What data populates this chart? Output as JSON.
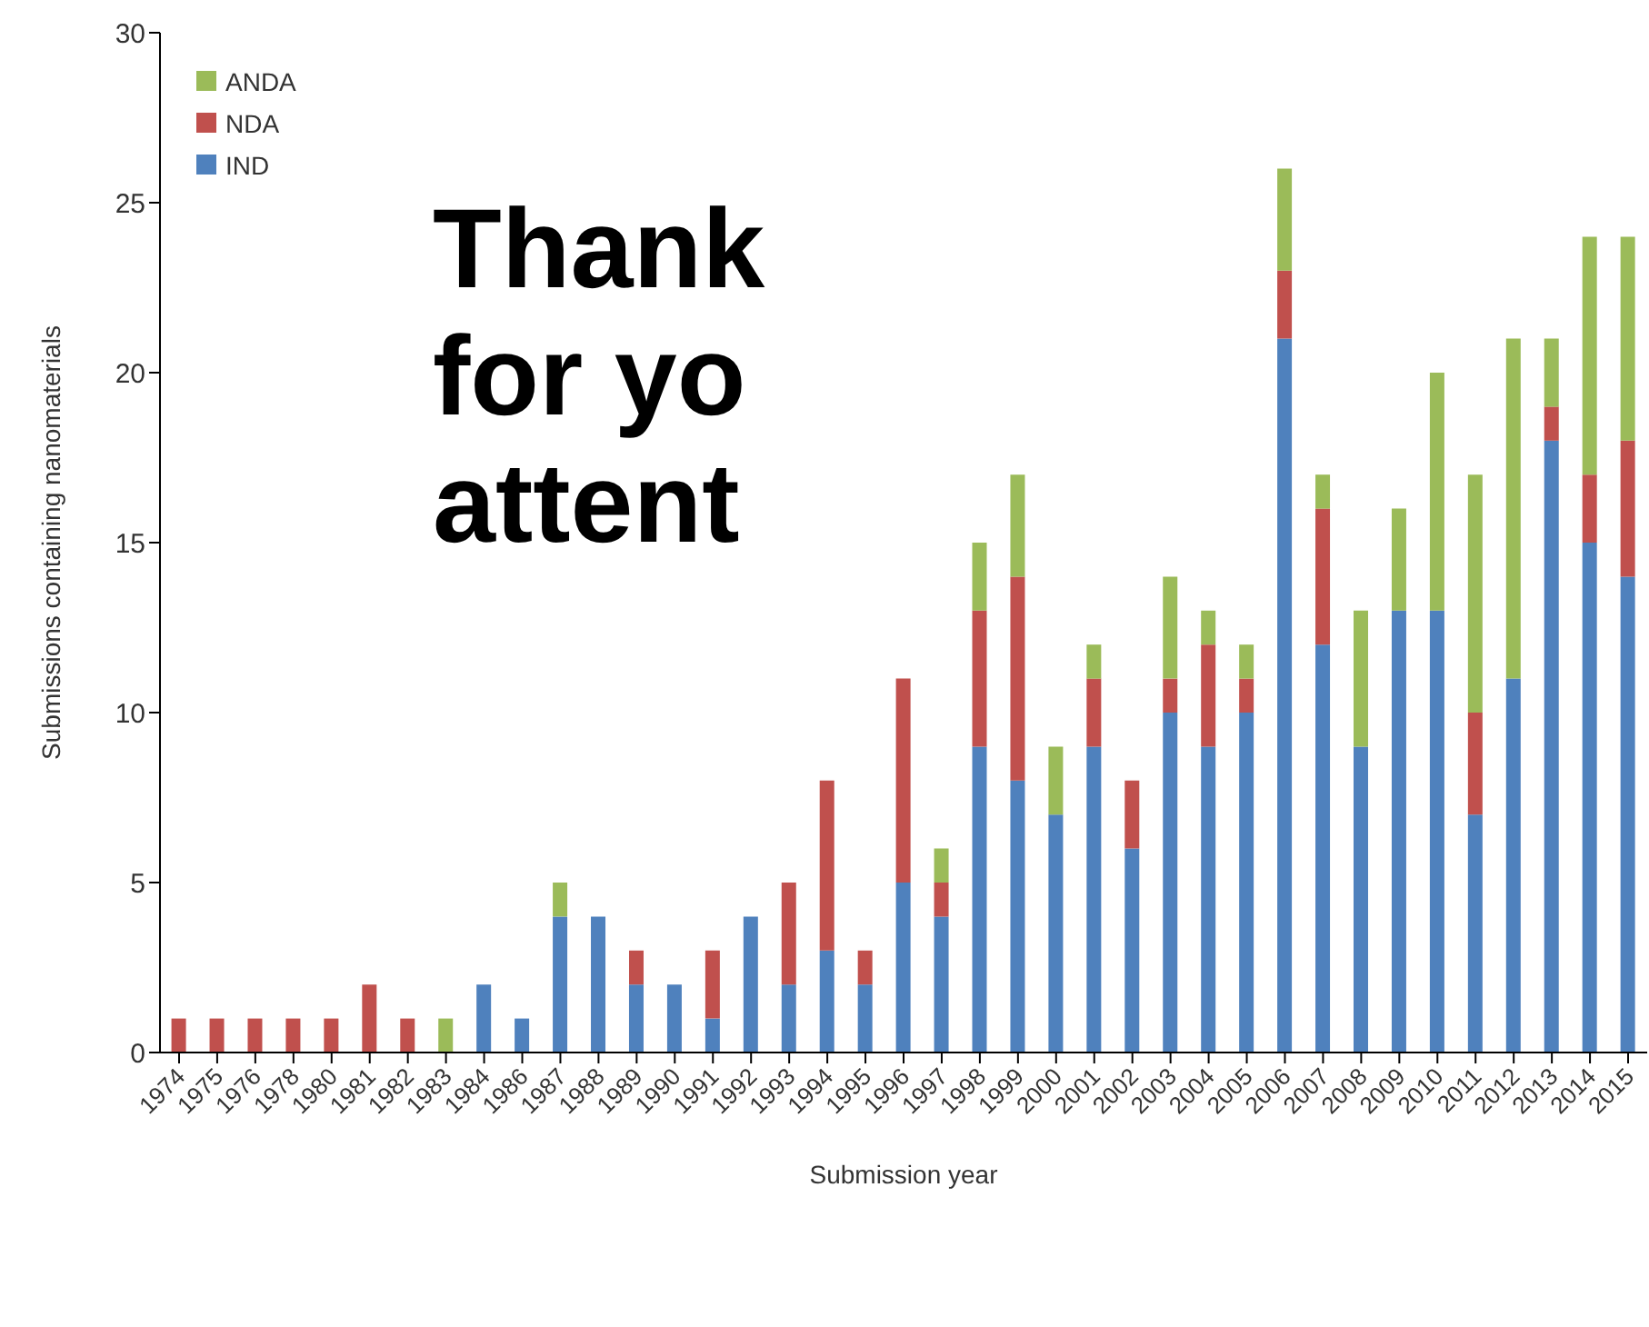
{
  "chart_data": {
    "type": "bar",
    "stacked": true,
    "xlabel": "Submission year",
    "ylabel": "Submissions containing nanomaterials",
    "categories": [
      "1974",
      "1975",
      "1976",
      "1978",
      "1980",
      "1981",
      "1982",
      "1983",
      "1984",
      "1986",
      "1987",
      "1988",
      "1989",
      "1990",
      "1991",
      "1992",
      "1993",
      "1994",
      "1995",
      "1996",
      "1997",
      "1998",
      "1999",
      "2000",
      "2001",
      "2002",
      "2003",
      "2004",
      "2005",
      "2006",
      "2007",
      "2008",
      "2009",
      "2010",
      "2011",
      "2012",
      "2013",
      "2014",
      "2015"
    ],
    "series": [
      {
        "name": "IND",
        "color": "#4f81bd",
        "values": [
          0,
          0,
          0,
          0,
          0,
          0,
          0,
          0,
          2,
          1,
          4,
          4,
          2,
          2,
          1,
          4,
          2,
          3,
          2,
          5,
          4,
          9,
          8,
          7,
          9,
          6,
          10,
          9,
          10,
          21,
          12,
          9,
          13,
          13,
          7,
          11,
          18,
          15,
          14
        ]
      },
      {
        "name": "NDA",
        "color": "#c0504d",
        "values": [
          1,
          1,
          1,
          1,
          1,
          2,
          1,
          0,
          0,
          0,
          0,
          0,
          1,
          0,
          2,
          0,
          3,
          5,
          1,
          6,
          1,
          4,
          6,
          0,
          2,
          2,
          1,
          3,
          1,
          2,
          4,
          0,
          0,
          0,
          3,
          0,
          1,
          2,
          4
        ]
      },
      {
        "name": "ANDA",
        "color": "#9bbb59",
        "values": [
          0,
          0,
          0,
          0,
          0,
          0,
          0,
          1,
          0,
          0,
          1,
          0,
          0,
          0,
          0,
          0,
          0,
          0,
          0,
          0,
          1,
          2,
          3,
          2,
          1,
          0,
          3,
          1,
          1,
          3,
          1,
          4,
          3,
          7,
          7,
          10,
          2,
          7,
          6
        ]
      }
    ],
    "ylim": [
      0,
      30
    ],
    "yticks": [
      0,
      5,
      10,
      15,
      20,
      25,
      30
    ],
    "grid": false,
    "legend": "top left",
    "annotations": [
      "Thank",
      "for yo",
      "attent"
    ]
  }
}
